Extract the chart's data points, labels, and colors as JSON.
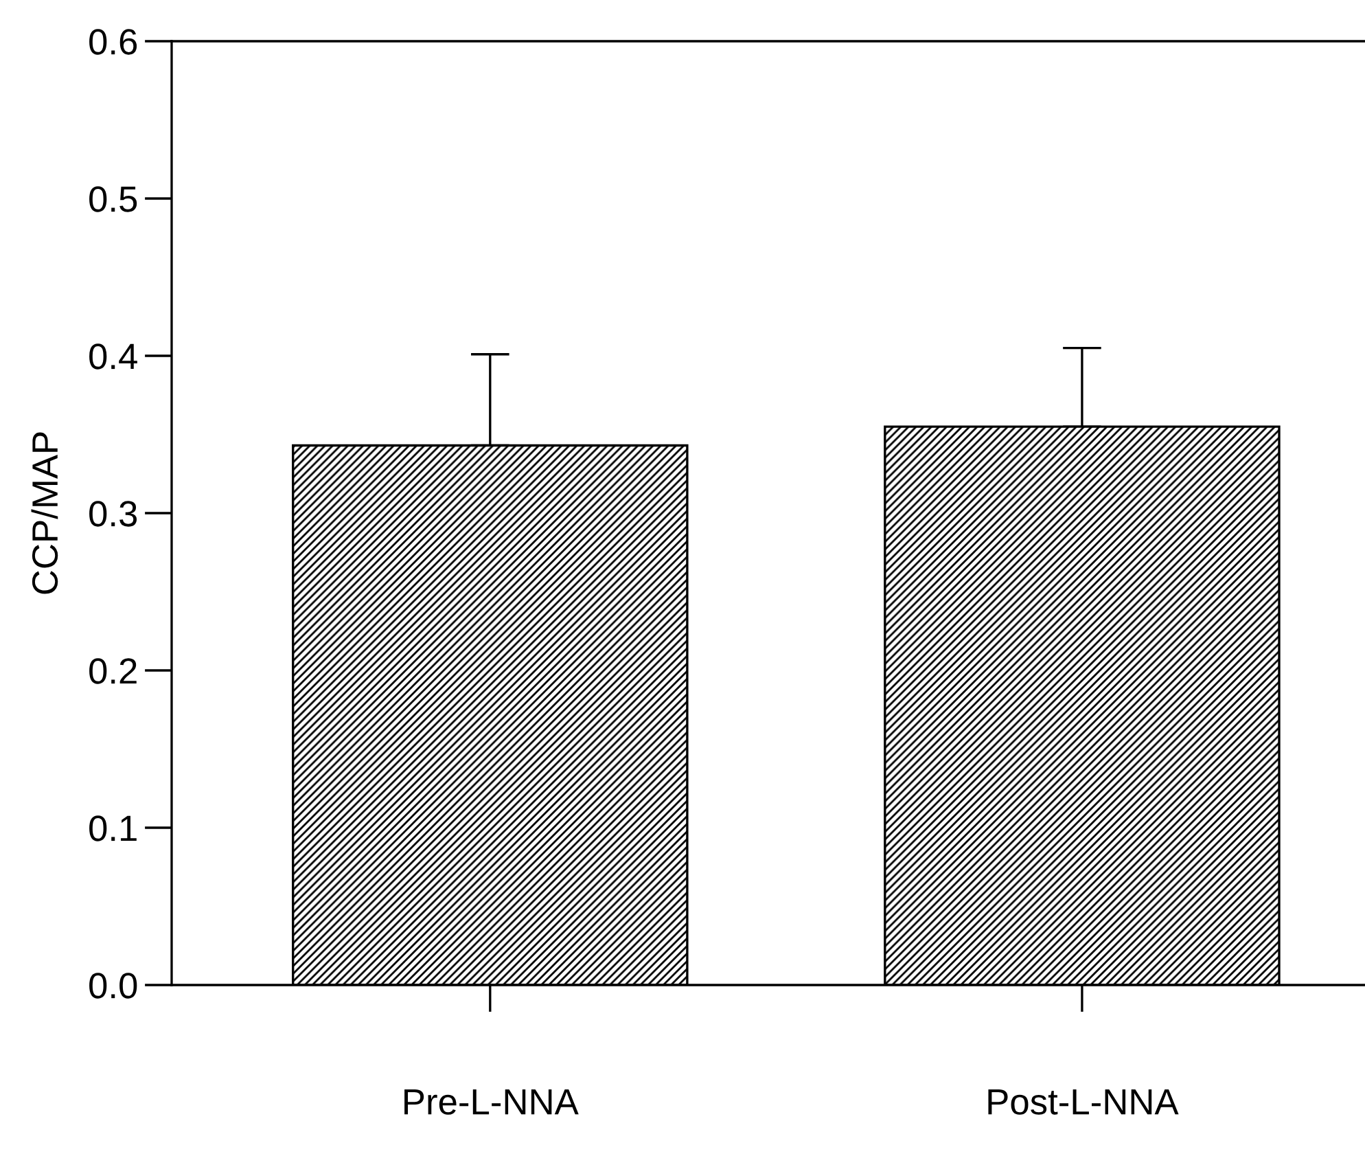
{
  "chart_data": {
    "type": "bar",
    "ylabel": "CCP/MAP",
    "categories": [
      "Pre-L-NNA",
      "Post-L-NNA"
    ],
    "values": [
      0.343,
      0.355
    ],
    "errors": [
      [
        0.343,
        0.401
      ],
      [
        0.355,
        0.405
      ]
    ],
    "color": "#000000",
    "ylim": [
      0,
      0.6
    ],
    "yticks": [
      {
        "value": 0,
        "label": "0.0"
      },
      0.1,
      0.2,
      0.3,
      0.4,
      0.5,
      0.6
    ]
  }
}
